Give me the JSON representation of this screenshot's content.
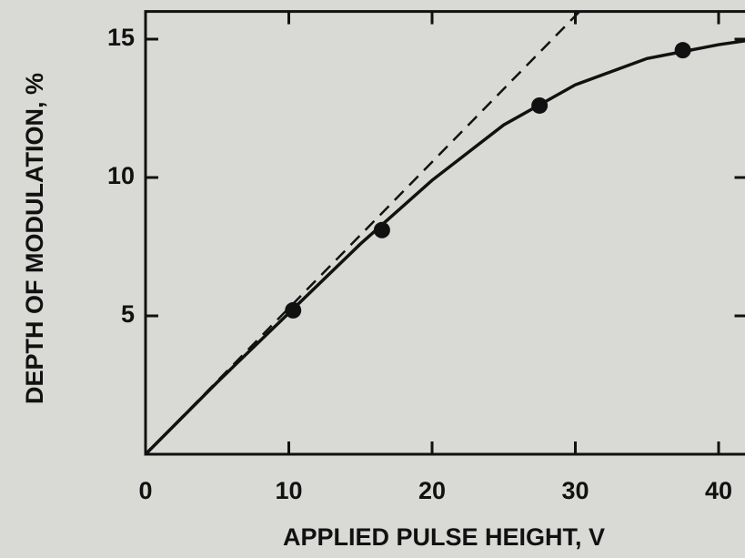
{
  "chart_data": {
    "type": "line",
    "xlabel": "APPLIED PULSE HEIGHT, V",
    "ylabel": "DEPTH OF MODULATION, %",
    "xlim": [
      0,
      42
    ],
    "ylim": [
      0,
      16
    ],
    "xticks": [
      0,
      10,
      20,
      30,
      40
    ],
    "yticks": [
      5,
      10,
      15
    ],
    "series": [
      {
        "mode": "line",
        "dash": false,
        "color": "#111111",
        "x": [
          0,
          5,
          10,
          15,
          20,
          25,
          30,
          35,
          40,
          42
        ],
        "values": [
          0,
          2.6,
          5.1,
          7.6,
          9.9,
          11.9,
          13.35,
          14.3,
          14.8,
          14.95
        ]
      },
      {
        "mode": "line",
        "dash": true,
        "color": "#111111",
        "x": [
          0,
          30.3
        ],
        "values": [
          0,
          16
        ]
      },
      {
        "mode": "markers",
        "color": "#111111",
        "x": [
          10.3,
          16.5,
          27.5,
          37.5
        ],
        "values": [
          5.2,
          8.1,
          12.6,
          14.6
        ]
      }
    ]
  }
}
